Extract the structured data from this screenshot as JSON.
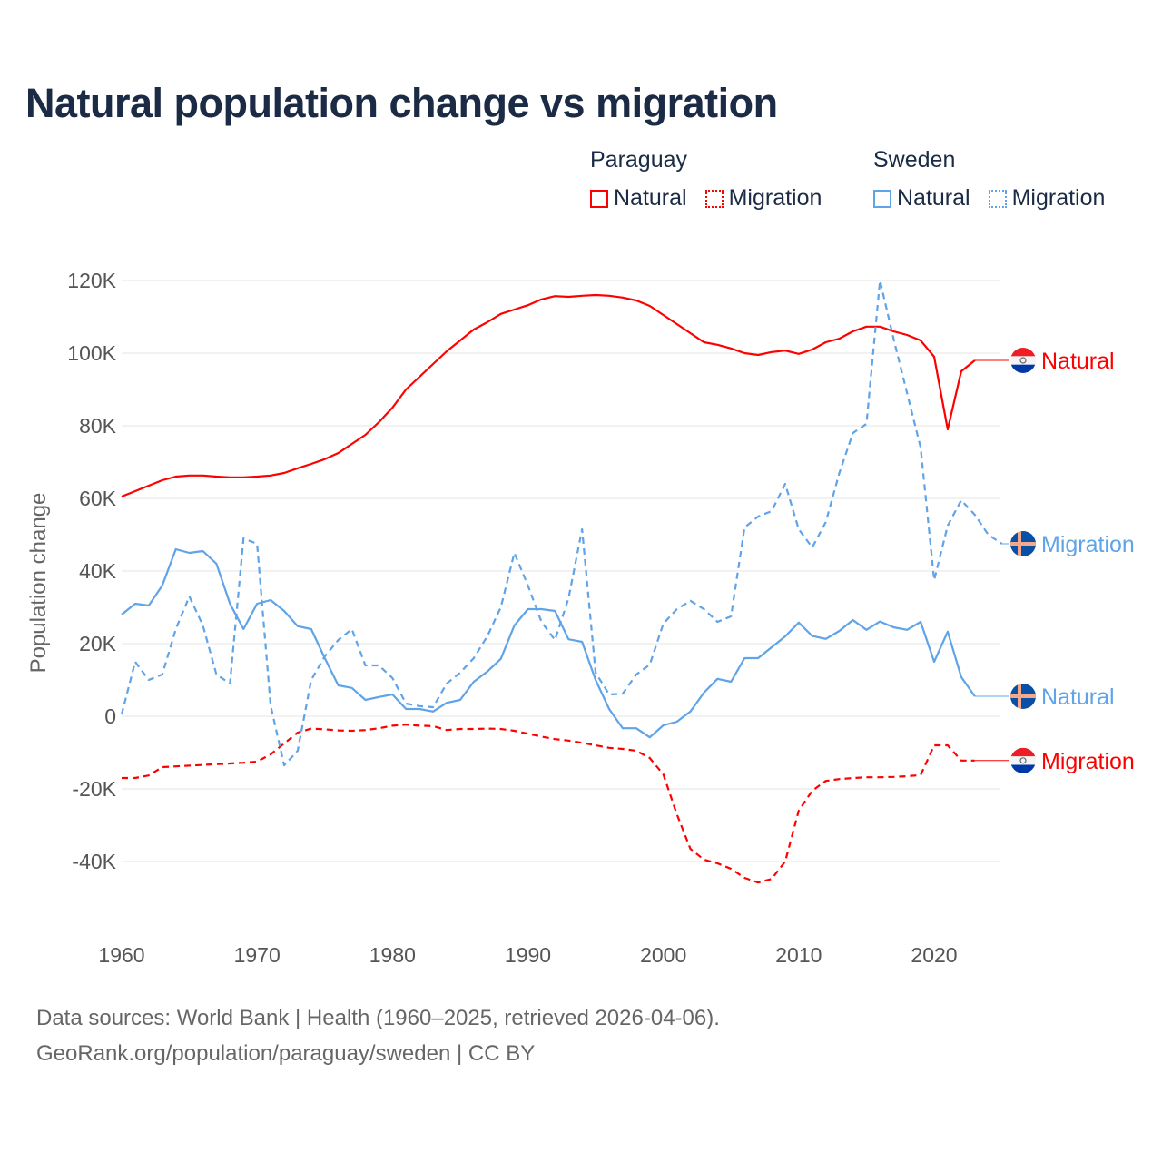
{
  "chart_data": {
    "type": "line",
    "title": "Natural population change vs migration",
    "xlabel": "",
    "ylabel": "Population change",
    "xlim": [
      1960,
      2025
    ],
    "ylim": [
      -60000,
      130000
    ],
    "x_ticks": [
      1960,
      1970,
      1980,
      1990,
      2000,
      2010,
      2020
    ],
    "x_tick_labels": [
      "1960",
      "1970",
      "1980",
      "1990",
      "2000",
      "2010",
      "2020"
    ],
    "y_ticks": [
      -40000,
      -20000,
      0,
      20000,
      40000,
      60000,
      80000,
      100000,
      120000
    ],
    "y_tick_labels": [
      "-40K",
      "-20K",
      "0",
      "20K",
      "40K",
      "60K",
      "80K",
      "100K",
      "120K"
    ],
    "grid": true,
    "legend": {
      "placement": "top-right",
      "groups": [
        {
          "title": "Paraguay",
          "items": [
            "Natural",
            "Migration"
          ]
        },
        {
          "title": "Sweden",
          "items": [
            "Natural",
            "Migration"
          ]
        }
      ]
    },
    "series": [
      {
        "name": "Natural",
        "country": "Paraguay",
        "color": "#ff0000",
        "dash": "solid",
        "label": "Natural",
        "flag": "paraguay-flag",
        "start_year": 1960,
        "values": [
          60.5,
          62,
          63.5,
          65,
          66,
          66.3,
          66.3,
          66,
          65.8,
          65.8,
          66,
          66.3,
          67,
          68.3,
          69.5,
          70.8,
          72.5,
          75,
          77.5,
          81,
          85,
          90,
          93.5,
          97,
          100.5,
          103.5,
          106.5,
          108.5,
          110.8,
          112,
          113.2,
          114.8,
          115.7,
          115.5,
          115.8,
          116,
          115.8,
          115.3,
          114.5,
          113,
          110.5,
          108,
          105.5,
          103,
          102.3,
          101.3,
          100,
          99.5,
          100.3,
          100.7,
          99.8,
          101,
          103,
          104,
          106,
          107.3,
          107.3,
          106,
          105,
          103.5,
          99,
          79,
          95,
          98
        ]
      },
      {
        "name": "Migration",
        "country": "Paraguay",
        "color": "#ff0000",
        "dash": "dashed",
        "label": "Migration",
        "flag": "paraguay-flag",
        "start_year": 1960,
        "values": [
          -17,
          -17,
          -16.3,
          -14,
          -13.8,
          -13.6,
          -13.4,
          -13.2,
          -13,
          -12.8,
          -12.5,
          -10.5,
          -7.5,
          -4.5,
          -3.4,
          -3.6,
          -3.9,
          -4,
          -3.8,
          -3.3,
          -2.6,
          -2.3,
          -2.6,
          -2.7,
          -3.8,
          -3.5,
          -3.5,
          -3.4,
          -3.5,
          -4,
          -4.8,
          -5.6,
          -6.3,
          -6.7,
          -7.3,
          -8,
          -8.7,
          -9,
          -9.5,
          -11.5,
          -16,
          -27,
          -36.5,
          -39.5,
          -40.5,
          -42,
          -44.5,
          -45.8,
          -44.8,
          -40,
          -26,
          -20.5,
          -17.8,
          -17.3,
          -17,
          -16.8,
          -16.8,
          -16.7,
          -16.5,
          -16.2,
          -8,
          -8,
          -12.2,
          -12.2
        ]
      },
      {
        "name": "Natural",
        "country": "Sweden",
        "color": "#5fa3e8",
        "dash": "solid",
        "label": "Natural",
        "flag": "sweden-flag",
        "start_year": 1960,
        "values": [
          28,
          31,
          30.5,
          36,
          46,
          45,
          45.5,
          42,
          31,
          24,
          31,
          32,
          29,
          24.8,
          24,
          16,
          8.5,
          7.8,
          4.5,
          5.3,
          6,
          2,
          2,
          1.3,
          3.7,
          4.5,
          9.5,
          12.3,
          15.8,
          25,
          29.5,
          29.5,
          29,
          21.2,
          20.5,
          10,
          2,
          -3.3,
          -3.3,
          -5.8,
          -2.5,
          -1.5,
          1.3,
          6.5,
          10.3,
          9.5,
          16,
          16,
          19,
          22,
          25.8,
          22.1,
          21.3,
          23.5,
          26.5,
          23.8,
          26.1,
          24.5,
          23.8,
          26,
          15,
          23.3,
          10.8,
          5.5
        ]
      },
      {
        "name": "Migration",
        "country": "Sweden",
        "color": "#5fa3e8",
        "dash": "dashed",
        "label": "Migration",
        "flag": "sweden-flag",
        "start_year": 1960,
        "values": [
          0.5,
          15,
          10,
          11.5,
          24,
          33,
          25,
          11.5,
          9,
          49,
          47.5,
          3,
          -13.5,
          -9.5,
          10,
          16.5,
          21,
          24,
          14,
          14,
          10.5,
          3.5,
          2.8,
          2.5,
          9,
          12,
          16,
          22,
          30,
          45,
          36,
          26,
          21,
          32.5,
          51.5,
          12,
          6,
          6.2,
          11.5,
          14.2,
          25.5,
          29.5,
          31.8,
          29.5,
          26,
          27.5,
          52,
          55,
          56.5,
          64,
          51.5,
          46.5,
          53.5,
          67,
          78,
          80.5,
          120,
          104,
          89,
          74,
          37.5,
          52.5,
          59.5,
          55.5,
          50,
          47.5
        ]
      }
    ],
    "values_unit": "thousands"
  },
  "footer": {
    "line1": "Data sources: World Bank | Health (1960–2025, retrieved 2026-04-06).",
    "line2": "GeoRank.org/population/paraguay/sweden | CC BY"
  }
}
